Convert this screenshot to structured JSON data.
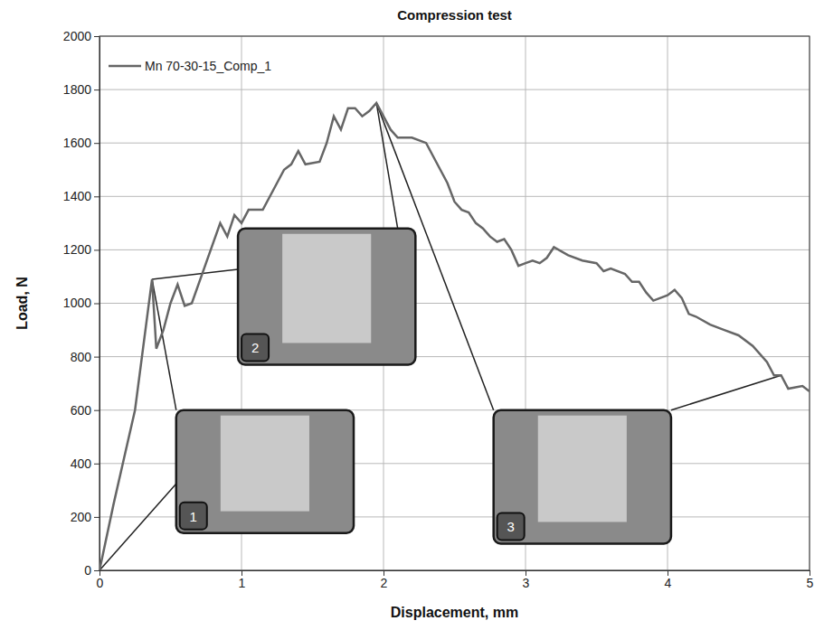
{
  "chart_data": {
    "type": "line",
    "title": "Compression test",
    "x_label": "Displacement, mm",
    "y_label": "Load, N",
    "xlim": [
      0,
      5
    ],
    "xticks": [
      0,
      1,
      2,
      3,
      4,
      5
    ],
    "ylim": [
      0,
      2000
    ],
    "yticks": [
      0,
      200,
      400,
      600,
      800,
      1000,
      1200,
      1400,
      1600,
      1800,
      2000
    ],
    "grid": true,
    "legend": "upper left",
    "annotations": [
      "1",
      "2",
      "3"
    ],
    "x": [
      0,
      0.1,
      0.25,
      0.37,
      0.4,
      0.45,
      0.5,
      0.55,
      0.6,
      0.65,
      0.75,
      0.85,
      0.9,
      0.95,
      1.0,
      1.05,
      1.15,
      1.25,
      1.3,
      1.35,
      1.4,
      1.45,
      1.55,
      1.6,
      1.65,
      1.7,
      1.75,
      1.8,
      1.85,
      1.9,
      1.95,
      2.0,
      2.05,
      2.1,
      2.2,
      2.3,
      2.35,
      2.4,
      2.45,
      2.5,
      2.55,
      2.6,
      2.65,
      2.7,
      2.75,
      2.8,
      2.85,
      2.9,
      2.95,
      3.0,
      3.05,
      3.1,
      3.15,
      3.2,
      3.3,
      3.4,
      3.5,
      3.55,
      3.6,
      3.7,
      3.75,
      3.8,
      3.85,
      3.9,
      4.0,
      4.05,
      4.1,
      4.15,
      4.2,
      4.3,
      4.4,
      4.5,
      4.6,
      4.7,
      4.75,
      4.8,
      4.85,
      4.95,
      5.0
    ],
    "series": [
      {
        "name": "Mn 70-30-15_Comp_1",
        "color": "#666666",
        "values": [
          0,
          250,
          600,
          1090,
          830,
          900,
          1000,
          1070,
          990,
          1000,
          1150,
          1300,
          1250,
          1330,
          1300,
          1350,
          1350,
          1450,
          1500,
          1520,
          1570,
          1520,
          1530,
          1600,
          1700,
          1650,
          1730,
          1730,
          1700,
          1720,
          1750,
          1700,
          1650,
          1620,
          1620,
          1600,
          1550,
          1500,
          1450,
          1380,
          1350,
          1340,
          1300,
          1280,
          1250,
          1230,
          1240,
          1200,
          1140,
          1150,
          1160,
          1150,
          1170,
          1210,
          1180,
          1160,
          1150,
          1120,
          1130,
          1110,
          1080,
          1080,
          1040,
          1010,
          1030,
          1050,
          1020,
          960,
          950,
          920,
          900,
          880,
          840,
          780,
          730,
          730,
          680,
          690,
          670
        ]
      }
    ]
  }
}
